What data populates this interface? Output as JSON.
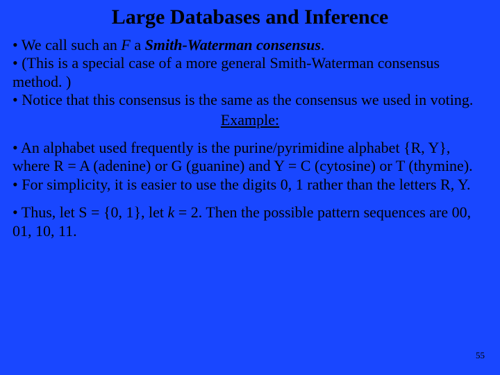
{
  "title": "Large Databases and Inference",
  "section1": {
    "line1_prefix": "• We call such an  ",
    "line1_var": "F",
    "line1_mid": "  a ",
    "line1_term": "Smith-Waterman consensus",
    "line1_suffix": ".",
    "line2": "• (This is a special case of a more general Smith-Waterman consensus method. )",
    "line3": "• Notice that this consensus is the same as the consensus we used in voting.",
    "example_label": "Example:"
  },
  "section2": {
    "line1": "• An alphabet used frequently is the purine/pyrimidine alphabet {R, Y},  where  R = A (adenine) or G (guanine) and Y = C (cytosine) or T (thymine).",
    "line2": "• For simplicity, it is easier to use the digits 0, 1 rather than the letters R, Y."
  },
  "section3": {
    "line1_prefix": "• Thus, let S = {0, 1}, let  ",
    "line1_var": "k",
    "line1_suffix": " = 2.  Then the possible pattern sequences are 00, 01, 10, 11."
  },
  "page_number": "55",
  "colors": {
    "background": "#1947ff",
    "text": "#000000"
  },
  "typography": {
    "title_fontsize": 30,
    "body_fontsize": 22,
    "pagenum_fontsize": 13,
    "font_family": "Times New Roman"
  }
}
